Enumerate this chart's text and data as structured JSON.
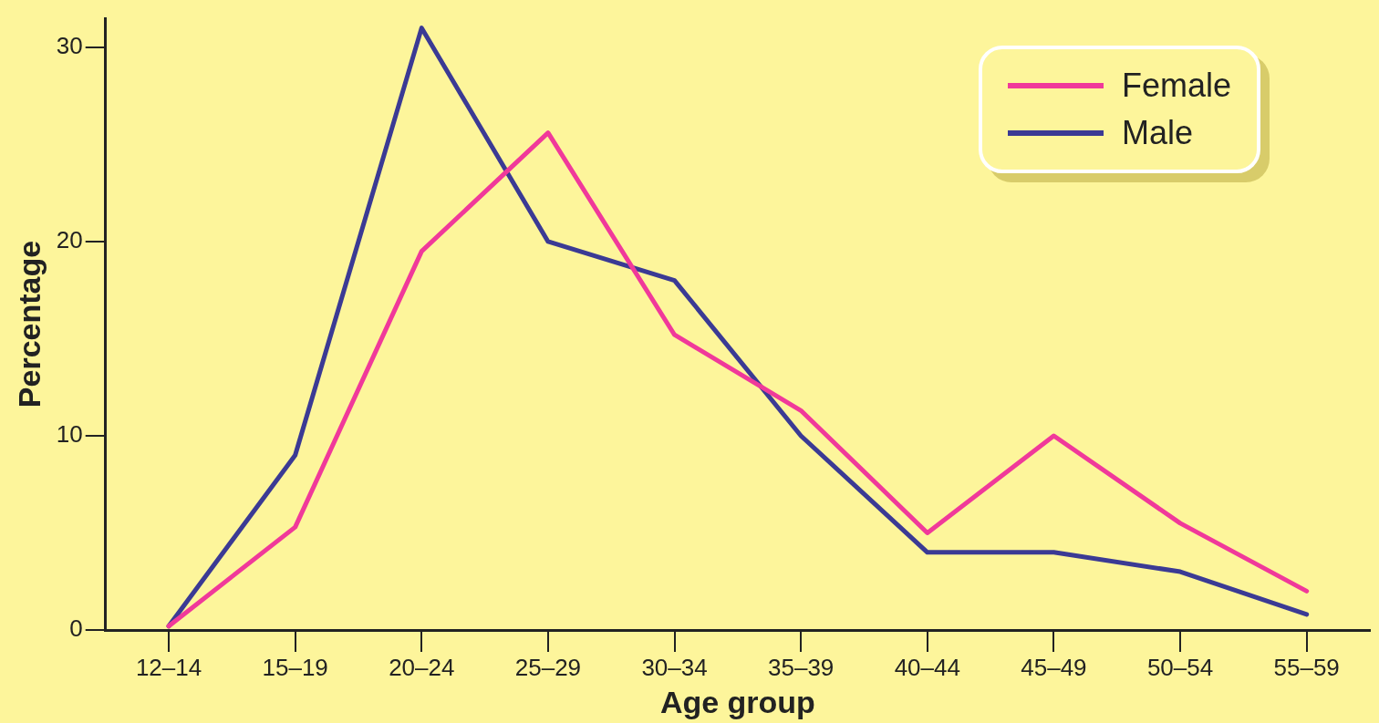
{
  "chart_data": {
    "type": "line",
    "xlabel": "Age group",
    "ylabel": "Percentage",
    "categories": [
      "12–14",
      "15–19",
      "20–24",
      "25–29",
      "30–34",
      "35–39",
      "40–44",
      "45–49",
      "50–54",
      "55–59"
    ],
    "series": [
      {
        "name": "Female",
        "color": "#f0399a",
        "values": [
          0.2,
          5.3,
          19.5,
          25.6,
          15.2,
          11.3,
          5,
          10,
          5.5,
          2
        ]
      },
      {
        "name": "Male",
        "color": "#3b3a94",
        "values": [
          0.2,
          9,
          31,
          20,
          18,
          10,
          4,
          4,
          3,
          0.8
        ]
      }
    ],
    "ylim": [
      0,
      31.5
    ],
    "yticks": [
      0,
      10,
      20,
      30
    ],
    "grid": false,
    "legend": "top right",
    "marker": "none",
    "line_style": "solid"
  }
}
